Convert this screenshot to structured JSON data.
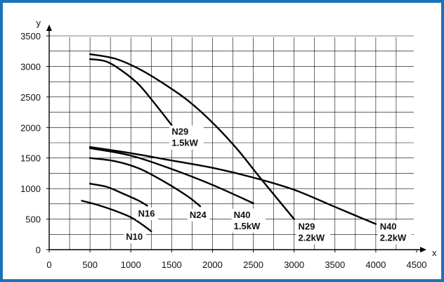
{
  "colors": {
    "frame": "#1a73b8",
    "grid": "#000000",
    "curve": "#000000",
    "background": "#ffffff"
  },
  "chart_data": {
    "type": "line",
    "title": "",
    "xlabel": "x",
    "ylabel": "y",
    "xlim": [
      0,
      4500
    ],
    "ylim": [
      0,
      3500
    ],
    "xticks": [
      0,
      500,
      1000,
      1500,
      2000,
      2500,
      3000,
      3500,
      4000,
      4500
    ],
    "yticks": [
      0,
      500,
      1000,
      1500,
      2000,
      2500,
      3000,
      3500
    ],
    "grid": true,
    "series": [
      {
        "name": "N29 1.5kW",
        "label_lines": [
          "N29",
          "1.5kW"
        ],
        "label_at": [
          1500,
          1880
        ],
        "x": [
          500,
          700,
          900,
          1100,
          1300,
          1500
        ],
        "y": [
          3120,
          3080,
          2920,
          2700,
          2380,
          2040
        ]
      },
      {
        "name": "N29 2.2kW",
        "label_lines": [
          "N29",
          "2.2kW"
        ],
        "label_at": [
          3050,
          330
        ],
        "x": [
          500,
          800,
          1100,
          1400,
          1700,
          2000,
          2300,
          2600,
          3000
        ],
        "y": [
          3200,
          3130,
          2960,
          2720,
          2440,
          2080,
          1650,
          1150,
          500
        ]
      },
      {
        "name": "N40 2.2kW",
        "label_lines": [
          "N40",
          "2.2kW"
        ],
        "label_at": [
          4050,
          330
        ],
        "x": [
          500,
          1000,
          1500,
          2000,
          2500,
          3000,
          3500,
          4000
        ],
        "y": [
          1680,
          1580,
          1460,
          1340,
          1180,
          980,
          700,
          420
        ]
      },
      {
        "name": "N40 1.5kW",
        "label_lines": [
          "N40",
          "1.5kW"
        ],
        "label_at": [
          2260,
          520
        ],
        "x": [
          500,
          1000,
          1500,
          2000,
          2500
        ],
        "y": [
          1660,
          1540,
          1320,
          1060,
          760
        ]
      },
      {
        "name": "N24",
        "label_lines": [
          "N24"
        ],
        "label_at": [
          1720,
          520
        ],
        "x": [
          500,
          800,
          1100,
          1400,
          1700,
          1850
        ],
        "y": [
          1500,
          1450,
          1330,
          1120,
          870,
          710
        ]
      },
      {
        "name": "N16",
        "label_lines": [
          "N16"
        ],
        "label_at": [
          1090,
          540
        ],
        "x": [
          500,
          700,
          900,
          1100,
          1200
        ],
        "y": [
          1080,
          1030,
          920,
          800,
          720
        ]
      },
      {
        "name": "N10",
        "label_lines": [
          "N10"
        ],
        "label_at": [
          940,
          160
        ],
        "x": [
          400,
          600,
          800,
          1000,
          1150,
          1250
        ],
        "y": [
          800,
          730,
          640,
          530,
          400,
          300
        ]
      }
    ]
  }
}
